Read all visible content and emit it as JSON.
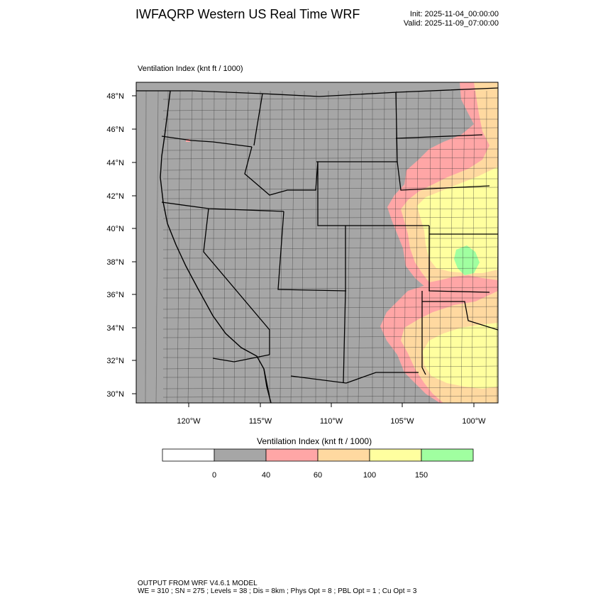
{
  "header": {
    "title": "IWFAQRP Western US Real Time WRF",
    "init": "Init: 2025-11-04_00:00:00",
    "valid": "Valid: 2025-11-09_07:00:00"
  },
  "field": {
    "label": "Ventilation Index   (knt ft / 1000)"
  },
  "axes": {
    "lat_labels": [
      "48°N",
      "46°N",
      "44°N",
      "42°N",
      "40°N",
      "38°N",
      "36°N",
      "34°N",
      "32°N",
      "30°N"
    ],
    "lon_labels": [
      "120°W",
      "115°W",
      "110°W",
      "105°W",
      "100°W"
    ]
  },
  "colorbar": {
    "title": "Ventilation Index   (knt ft / 1000)",
    "ticks": [
      "0",
      "40",
      "60",
      "100",
      "150"
    ],
    "colors": [
      "#ffffff",
      "#a6a6a6",
      "#ffa6a6",
      "#ffd9a0",
      "#ffff9f",
      "#a0ffa0"
    ]
  },
  "map_colors": {
    "base": "#a6a6a6",
    "low": "#ffa6a6",
    "mid": "#ffd9a0",
    "high": "#ffff9f",
    "top": "#a0ffa0"
  },
  "footer": {
    "line1": "OUTPUT FROM WRF V4.6.1 MODEL",
    "line2": "WE = 310 ; SN = 275 ; Levels = 38 ; Dis = 8km ; Phys Opt = 8 ; PBL Opt = 1 ; Cu Opt = 3"
  }
}
